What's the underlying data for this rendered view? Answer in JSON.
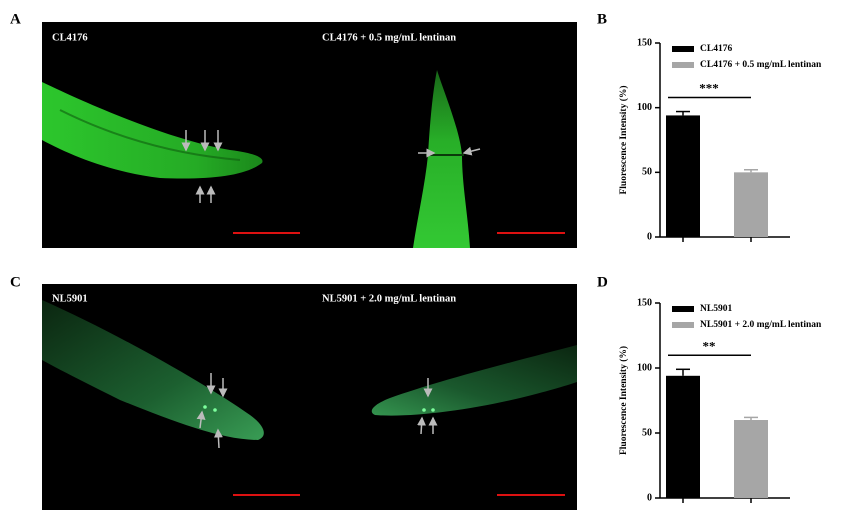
{
  "panel_labels": [
    "A",
    "B",
    "C",
    "D"
  ],
  "images": [
    {
      "captions": [
        "CL4176",
        "CL4176 + 0.5 mg/mL lentinan"
      ]
    },
    {
      "captions": [
        "NL5901",
        "NL5901 + 2.0 mg/mL lentinan"
      ]
    }
  ],
  "chart_data": [
    {
      "type": "bar",
      "ylabel": "Fluorescence Intensity (%)",
      "ylim": [
        0,
        150
      ],
      "yticks": [
        0,
        50,
        100,
        150
      ],
      "annotation": "***",
      "series": [
        {
          "name": "CL4176",
          "color": "#000000",
          "values": [
            94
          ],
          "errors": [
            3
          ]
        },
        {
          "name": "CL4176 + 0.5 mg/mL lentinan",
          "color": "#a6a6a6",
          "values": [
            50
          ],
          "errors": [
            2
          ]
        }
      ]
    },
    {
      "type": "bar",
      "ylabel": "Fluorescence Intensity (%)",
      "ylim": [
        0,
        150
      ],
      "yticks": [
        0,
        50,
        100,
        150
      ],
      "annotation": "**",
      "series": [
        {
          "name": "NL5901",
          "color": "#000000",
          "values": [
            94
          ],
          "errors": [
            5
          ]
        },
        {
          "name": "NL5901 + 2.0 mg/mL lentinan",
          "color": "#a6a6a6",
          "values": [
            60
          ],
          "errors": [
            2
          ]
        }
      ]
    }
  ]
}
